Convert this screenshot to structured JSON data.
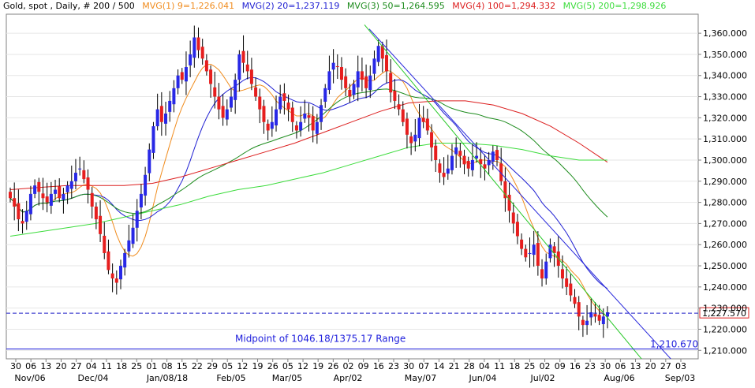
{
  "header": {
    "title": "Gold, spot , Daily, # 200 / 500",
    "indicators": [
      {
        "label": "MVG(1) 9=1,226.041",
        "color": "#f08c1e"
      },
      {
        "label": "MVG(2) 20=1,237.119",
        "color": "#1e1ed2"
      },
      {
        "label": "MVG(3) 50=1,264.595",
        "color": "#1e8c1e"
      },
      {
        "label": "MVG(4) 100=1,294.332",
        "color": "#dc1e1e"
      },
      {
        "label": "MVG(5) 200=1,298.926",
        "color": "#3cdc3c"
      }
    ]
  },
  "chart_data": {
    "type": "candlestick",
    "x_tick_labels": [
      "30",
      "06",
      "13",
      "20",
      "27",
      "04",
      "11",
      "18",
      "25",
      "01",
      "08",
      "15",
      "22",
      "29",
      "05",
      "12",
      "19",
      "26",
      "05",
      "12",
      "19",
      "26",
      "02",
      "09",
      "16",
      "23",
      "30",
      "07",
      "14",
      "21",
      "28",
      "04",
      "11",
      "18",
      "25",
      "02",
      "09",
      "16",
      "23",
      "30",
      "06",
      "13",
      "20",
      "27",
      "03"
    ],
    "month_labels": [
      "Nov/06",
      "Dec/04",
      "Jan/08/18",
      "Feb/05",
      "Mar/05",
      "Apr/02",
      "May/07",
      "Jun/04",
      "Jul/02",
      "Aug/06",
      "Sep/03"
    ],
    "y_tick_labels": [
      "1,210.000",
      "1,220.000",
      "1,230.000",
      "1,240.000",
      "1,250.000",
      "1,260.000",
      "1,270.000",
      "1,280.000",
      "1,290.000",
      "1,300.000",
      "1,310.000",
      "1,320.000",
      "1,330.000",
      "1,340.000",
      "1,350.000",
      "1,360.000"
    ],
    "y_ticks": [
      1210,
      1220,
      1230,
      1240,
      1250,
      1260,
      1270,
      1280,
      1290,
      1300,
      1310,
      1320,
      1330,
      1340,
      1350,
      1360
    ],
    "ylim": [
      1206,
      1369
    ],
    "current_price": {
      "value": 1227.57,
      "label": "1,227.570"
    },
    "support": {
      "value": 1210.67,
      "label": "1,210.670"
    },
    "annotation": "Midpoint of 1046.18/1375.17 Range",
    "series_close": [
      1282,
      1278,
      1272,
      1270,
      1276,
      1284,
      1288,
      1285,
      1282,
      1280,
      1284,
      1286,
      1282,
      1284,
      1288,
      1290,
      1294,
      1296,
      1291,
      1286,
      1278,
      1272,
      1265,
      1256,
      1248,
      1244,
      1242,
      1250,
      1256,
      1262,
      1268,
      1276,
      1284,
      1293,
      1305,
      1316,
      1324,
      1318,
      1322,
      1328,
      1334,
      1340,
      1338,
      1344,
      1350,
      1358,
      1352,
      1348,
      1342,
      1336,
      1330,
      1324,
      1320,
      1324,
      1330,
      1338,
      1350,
      1346,
      1342,
      1336,
      1330,
      1324,
      1318,
      1314,
      1318,
      1324,
      1330,
      1328,
      1324,
      1318,
      1314,
      1318,
      1322,
      1320,
      1314,
      1318,
      1326,
      1334,
      1342,
      1346,
      1344,
      1338,
      1334,
      1330,
      1336,
      1342,
      1338,
      1334,
      1340,
      1348,
      1354,
      1348,
      1342,
      1332,
      1328,
      1324,
      1318,
      1312,
      1308,
      1312,
      1320,
      1318,
      1314,
      1306,
      1300,
      1294,
      1292,
      1296,
      1302,
      1306,
      1302,
      1298,
      1296,
      1300,
      1302,
      1298,
      1296,
      1300,
      1304,
      1300,
      1290,
      1282,
      1276,
      1270,
      1264,
      1258,
      1254,
      1256,
      1260,
      1250,
      1244,
      1252,
      1260,
      1256,
      1250,
      1244,
      1240,
      1236,
      1232,
      1226,
      1222,
      1224,
      1228,
      1226,
      1224,
      1226,
      1228
    ],
    "series": [
      {
        "name": "MVG(1) 9",
        "period": 9,
        "color": "#f08c1e"
      },
      {
        "name": "MVG(2) 20",
        "period": 20,
        "color": "#1e1ed2"
      },
      {
        "name": "MVG(3) 50",
        "period": 50,
        "color": "#1e8c1e"
      },
      {
        "name": "MVG(4) 100",
        "period": 100,
        "color": "#dc1e1e"
      },
      {
        "name": "MVG(5) 200",
        "period": 200,
        "color": "#3cdc3c"
      }
    ],
    "ma_paths": {
      "mvg4": [
        [
          1286,
          1286
        ],
        [
          1287,
          1287
        ],
        [
          1288,
          1288
        ],
        [
          1288,
          1288
        ],
        [
          1288,
          1289
        ],
        [
          1289,
          1290
        ],
        [
          1292,
          1292
        ],
        [
          1296,
          1296
        ],
        [
          1300,
          1300
        ],
        [
          1304,
          1304
        ],
        [
          1308,
          1308
        ],
        [
          1313,
          1313
        ],
        [
          1318,
          1318
        ],
        [
          1323,
          1323
        ],
        [
          1327,
          1327
        ],
        [
          1328,
          1329
        ],
        [
          1328,
          1326
        ],
        [
          1326,
          1324
        ],
        [
          1322,
          1320
        ],
        [
          1316,
          1312
        ],
        [
          1308,
          1304
        ],
        [
          1299,
          1294
        ]
      ],
      "mvg5": [
        [
          1264,
          1264
        ],
        [
          1266,
          1267
        ],
        [
          1268,
          1268
        ],
        [
          1270,
          1271
        ],
        [
          1273,
          1274
        ],
        [
          1276,
          1277
        ],
        [
          1279,
          1281
        ],
        [
          1283,
          1285
        ],
        [
          1286,
          1287
        ],
        [
          1288,
          1290
        ],
        [
          1291,
          1292
        ],
        [
          1294,
          1296
        ],
        [
          1298,
          1300
        ],
        [
          1302,
          1304
        ],
        [
          1306,
          1307
        ],
        [
          1308,
          1308
        ],
        [
          1308,
          1307
        ],
        [
          1307,
          1306
        ],
        [
          1305,
          1304
        ],
        [
          1302,
          1301
        ],
        [
          1300,
          1300
        ],
        [
          1300,
          1299
        ]
      ]
    },
    "trendlines": [
      {
        "color": "#2828dc",
        "from": [
          1362,
          1362
        ],
        "to": [
          1202,
          1202
        ]
      },
      {
        "color": "#28c828",
        "from": [
          1364,
          1364
        ],
        "to": [
          1202,
          1202
        ]
      }
    ]
  }
}
